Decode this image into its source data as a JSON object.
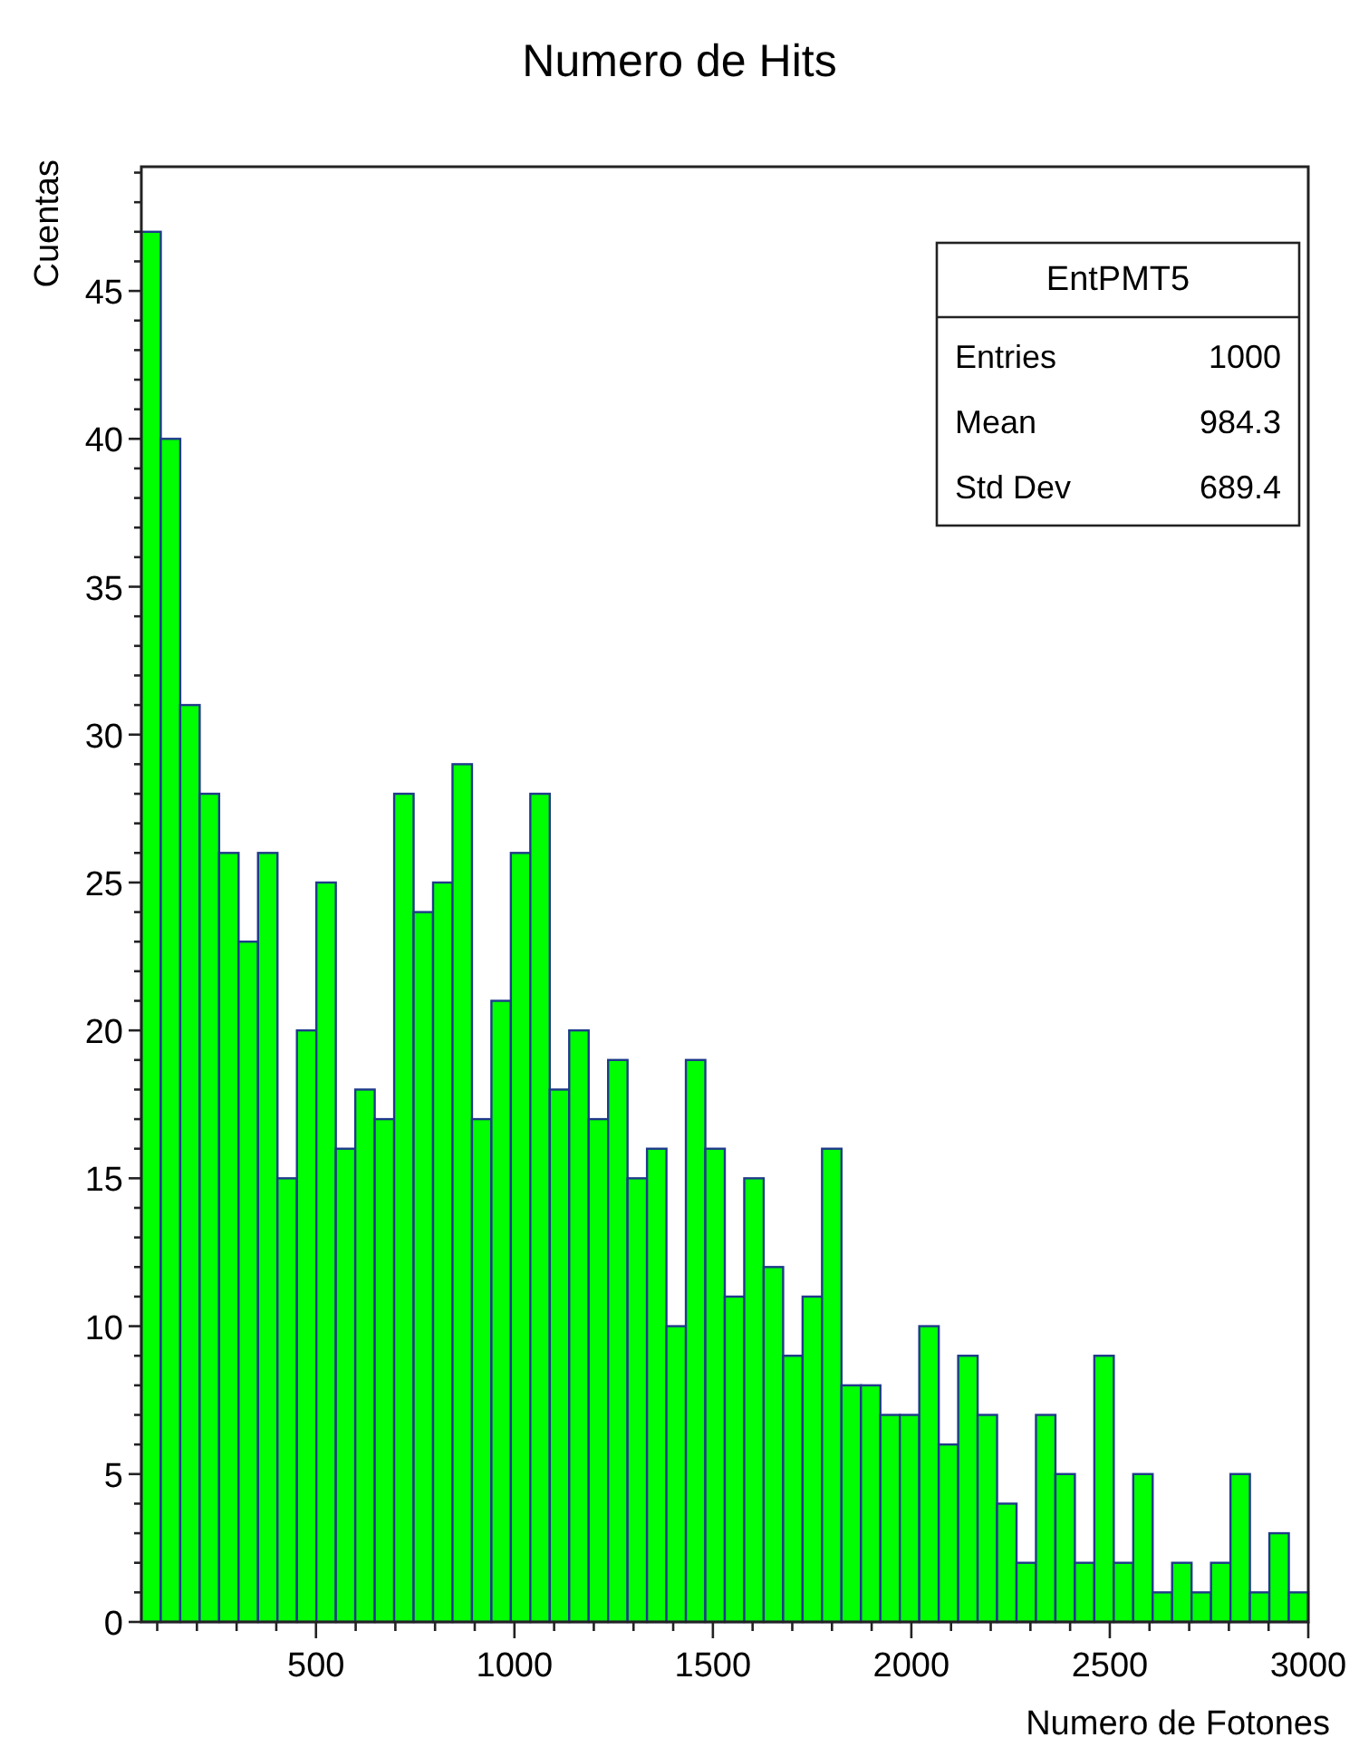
{
  "chart_data": {
    "type": "histogram",
    "title": "Numero de Hits",
    "xlabel": "Numero de Fotones",
    "ylabel": "Cuentas",
    "bins": [
      60,
      109,
      158,
      207,
      256,
      305,
      354,
      403,
      452,
      501,
      550,
      599,
      648,
      697,
      746,
      795,
      844,
      893,
      942,
      991,
      1040,
      1089,
      1138,
      1187,
      1236,
      1285,
      1334,
      1383,
      1432,
      1481,
      1530,
      1579,
      1628,
      1677,
      1726,
      1775,
      1824,
      1873,
      1922,
      1971,
      2020,
      2069,
      2118,
      2167,
      2216,
      2265,
      2314,
      2363,
      2412,
      2461,
      2510,
      2559,
      2608,
      2657,
      2706,
      2755,
      2804,
      2853,
      2902,
      2951,
      3000
    ],
    "values": [
      47,
      40,
      31,
      28,
      26,
      23,
      26,
      15,
      20,
      25,
      16,
      18,
      17,
      28,
      24,
      25,
      29,
      17,
      21,
      26,
      28,
      18,
      20,
      17,
      19,
      15,
      16,
      10,
      19,
      16,
      11,
      15,
      12,
      9,
      11,
      16,
      8,
      8,
      7,
      7,
      10,
      6,
      9,
      7,
      4,
      2,
      7,
      5,
      2,
      9,
      2,
      5,
      1,
      2,
      1,
      2,
      5,
      1,
      3,
      1
    ],
    "color": "#00ff00",
    "xlim": [
      60,
      3000
    ],
    "ylim": [
      0,
      49.2
    ],
    "xticks": [
      {
        "value": 100,
        "label": null
      },
      {
        "value": 200,
        "label": null
      },
      {
        "value": 300,
        "label": null
      },
      {
        "value": 400,
        "label": null
      },
      500,
      {
        "value": 600,
        "label": null
      },
      {
        "value": 700,
        "label": null
      },
      {
        "value": 800,
        "label": null
      },
      {
        "value": 900,
        "label": null
      },
      1000,
      {
        "value": 1100,
        "label": null
      },
      {
        "value": 1200,
        "label": null
      },
      {
        "value": 1300,
        "label": null
      },
      {
        "value": 1400,
        "label": null
      },
      1500,
      {
        "value": 1600,
        "label": null
      },
      {
        "value": 1700,
        "label": null
      },
      {
        "value": 1800,
        "label": null
      },
      {
        "value": 1900,
        "label": null
      },
      2000,
      {
        "value": 2100,
        "label": null
      },
      {
        "value": 2200,
        "label": null
      },
      {
        "value": 2300,
        "label": null
      },
      {
        "value": 2400,
        "label": null
      },
      2500,
      {
        "value": 2600,
        "label": null
      },
      {
        "value": 2700,
        "label": null
      },
      {
        "value": 2800,
        "label": null
      },
      {
        "value": 2900,
        "label": null
      },
      3000
    ],
    "yticks": [
      0,
      {
        "value": 1,
        "label": null
      },
      {
        "value": 2,
        "label": null
      },
      {
        "value": 3,
        "label": null
      },
      {
        "value": 4,
        "label": null
      },
      5,
      {
        "value": 6,
        "label": null
      },
      {
        "value": 7,
        "label": null
      },
      {
        "value": 8,
        "label": null
      },
      {
        "value": 9,
        "label": null
      },
      10,
      {
        "value": 11,
        "label": null
      },
      {
        "value": 12,
        "label": null
      },
      {
        "value": 13,
        "label": null
      },
      {
        "value": 14,
        "label": null
      },
      15,
      {
        "value": 16,
        "label": null
      },
      {
        "value": 17,
        "label": null
      },
      {
        "value": 18,
        "label": null
      },
      {
        "value": 19,
        "label": null
      },
      20,
      {
        "value": 21,
        "label": null
      },
      {
        "value": 22,
        "label": null
      },
      {
        "value": 23,
        "label": null
      },
      {
        "value": 24,
        "label": null
      },
      25,
      {
        "value": 26,
        "label": null
      },
      {
        "value": 27,
        "label": null
      },
      {
        "value": 28,
        "label": null
      },
      {
        "value": 29,
        "label": null
      },
      30,
      {
        "value": 31,
        "label": null
      },
      {
        "value": 32,
        "label": null
      },
      {
        "value": 33,
        "label": null
      },
      {
        "value": 34,
        "label": null
      },
      35,
      {
        "value": 36,
        "label": null
      },
      {
        "value": 37,
        "label": null
      },
      {
        "value": 38,
        "label": null
      },
      {
        "value": 39,
        "label": null
      },
      40,
      {
        "value": 41,
        "label": null
      },
      {
        "value": 42,
        "label": null
      },
      {
        "value": 43,
        "label": null
      },
      {
        "value": 44,
        "label": null
      },
      45,
      {
        "value": 46,
        "label": null
      },
      {
        "value": 47,
        "label": null
      },
      {
        "value": 48,
        "label": null
      },
      {
        "value": 49,
        "label": null
      }
    ],
    "annotations": [
      "EntPMT5",
      "Entries",
      "1000",
      "Mean",
      "984.3",
      "Std Dev",
      "689.4"
    ]
  }
}
